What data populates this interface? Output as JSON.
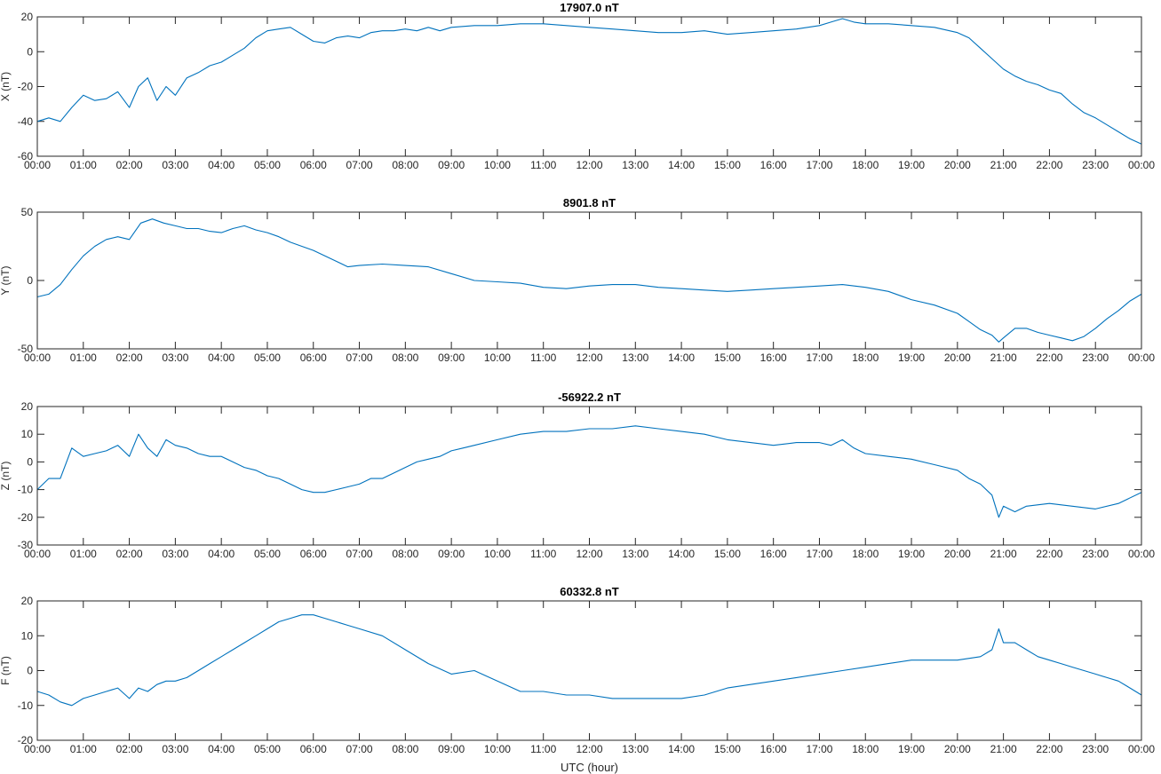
{
  "figure": {
    "xlabel": "UTC (hour)",
    "x_tick_labels": [
      "00:00",
      "01:00",
      "02:00",
      "03:00",
      "04:00",
      "05:00",
      "06:00",
      "07:00",
      "08:00",
      "09:00",
      "10:00",
      "11:00",
      "12:00",
      "13:00",
      "14:00",
      "15:00",
      "16:00",
      "17:00",
      "18:00",
      "19:00",
      "20:00",
      "21:00",
      "22:00",
      "23:00",
      "00:00"
    ],
    "line_color": "#0072bd"
  },
  "chart_data": [
    {
      "type": "line",
      "title": "17907.0 nT",
      "xlabel": "",
      "ylabel": "X (nT)",
      "xlim": [
        0,
        24
      ],
      "ylim": [
        -60,
        20
      ],
      "y_ticks": [
        -60,
        -40,
        -20,
        0,
        20
      ],
      "grid": false,
      "series": [
        {
          "x": [
            0,
            0.25,
            0.5,
            0.75,
            1,
            1.25,
            1.5,
            1.75,
            2,
            2.2,
            2.4,
            2.6,
            2.8,
            3,
            3.25,
            3.5,
            3.75,
            4,
            4.25,
            4.5,
            4.75,
            5,
            5.25,
            5.5,
            5.75,
            6,
            6.25,
            6.5,
            6.75,
            7,
            7.25,
            7.5,
            7.75,
            8,
            8.25,
            8.5,
            8.75,
            9,
            9.5,
            10,
            10.5,
            11,
            11.5,
            12,
            12.5,
            13,
            13.5,
            14,
            14.5,
            15,
            15.5,
            16,
            16.5,
            17,
            17.25,
            17.5,
            17.75,
            18,
            18.5,
            19,
            19.5,
            20,
            20.25,
            20.5,
            20.75,
            21,
            21.25,
            21.5,
            21.75,
            22,
            22.25,
            22.5,
            22.75,
            23,
            23.25,
            23.5,
            23.75,
            24
          ],
          "y": [
            -40,
            -38,
            -40,
            -32,
            -25,
            -28,
            -27,
            -23,
            -32,
            -20,
            -15,
            -28,
            -20,
            -25,
            -15,
            -12,
            -8,
            -6,
            -2,
            2,
            8,
            12,
            13,
            14,
            10,
            6,
            5,
            8,
            9,
            8,
            11,
            12,
            12,
            13,
            12,
            14,
            12,
            14,
            15,
            15,
            16,
            16,
            15,
            14,
            13,
            12,
            11,
            11,
            12,
            10,
            11,
            12,
            13,
            15,
            17,
            19,
            17,
            16,
            16,
            15,
            14,
            11,
            8,
            2,
            -4,
            -10,
            -14,
            -17,
            -19,
            -22,
            -24,
            -30,
            -35,
            -38,
            -42,
            -46,
            -50,
            -53
          ]
        }
      ]
    },
    {
      "type": "line",
      "title": "8901.8 nT",
      "xlabel": "",
      "ylabel": "Y (nT)",
      "xlim": [
        0,
        24
      ],
      "ylim": [
        -50,
        50
      ],
      "y_ticks": [
        -50,
        0,
        50
      ],
      "grid": false,
      "series": [
        {
          "x": [
            0,
            0.25,
            0.5,
            0.75,
            1,
            1.25,
            1.5,
            1.75,
            2,
            2.25,
            2.5,
            2.75,
            3,
            3.25,
            3.5,
            3.75,
            4,
            4.25,
            4.5,
            4.75,
            5,
            5.25,
            5.5,
            5.75,
            6,
            6.25,
            6.5,
            6.75,
            7,
            7.5,
            8,
            8.5,
            9,
            9.5,
            10,
            10.5,
            11,
            11.5,
            12,
            12.5,
            13,
            13.5,
            14,
            14.5,
            15,
            15.5,
            16,
            16.5,
            17,
            17.5,
            18,
            18.5,
            19,
            19.5,
            20,
            20.25,
            20.5,
            20.75,
            20.9,
            21,
            21.25,
            21.5,
            21.75,
            22,
            22.25,
            22.5,
            22.75,
            23,
            23.25,
            23.5,
            23.75,
            24
          ],
          "y": [
            -12,
            -10,
            -3,
            8,
            18,
            25,
            30,
            32,
            30,
            42,
            45,
            42,
            40,
            38,
            38,
            36,
            35,
            38,
            40,
            37,
            35,
            32,
            28,
            25,
            22,
            18,
            14,
            10,
            11,
            12,
            11,
            10,
            5,
            0,
            -1,
            -2,
            -5,
            -6,
            -4,
            -3,
            -3,
            -5,
            -6,
            -7,
            -8,
            -7,
            -6,
            -5,
            -4,
            -3,
            -5,
            -8,
            -14,
            -18,
            -24,
            -30,
            -36,
            -40,
            -45,
            -42,
            -35,
            -35,
            -38,
            -40,
            -42,
            -44,
            -41,
            -35,
            -28,
            -22,
            -15,
            -10
          ]
        }
      ]
    },
    {
      "type": "line",
      "title": "-56922.2 nT",
      "xlabel": "",
      "ylabel": "Z (nT)",
      "xlim": [
        0,
        24
      ],
      "ylim": [
        -30,
        20
      ],
      "y_ticks": [
        -30,
        -20,
        -10,
        0,
        10,
        20
      ],
      "grid": false,
      "series": [
        {
          "x": [
            0,
            0.25,
            0.5,
            0.75,
            1,
            1.25,
            1.5,
            1.75,
            2,
            2.2,
            2.4,
            2.6,
            2.8,
            3,
            3.25,
            3.5,
            3.75,
            4,
            4.25,
            4.5,
            4.75,
            5,
            5.25,
            5.5,
            5.75,
            6,
            6.25,
            6.5,
            6.75,
            7,
            7.25,
            7.5,
            7.75,
            8,
            8.25,
            8.5,
            8.75,
            9,
            9.25,
            9.5,
            10,
            10.5,
            11,
            11.5,
            12,
            12.5,
            13,
            13.5,
            14,
            14.5,
            15,
            15.5,
            16,
            16.5,
            17,
            17.25,
            17.5,
            17.75,
            18,
            18.5,
            19,
            19.5,
            20,
            20.25,
            20.5,
            20.75,
            20.9,
            21,
            21.25,
            21.5,
            22,
            22.5,
            23,
            23.5,
            24
          ],
          "y": [
            -10,
            -6,
            -6,
            5,
            2,
            3,
            4,
            6,
            2,
            10,
            5,
            2,
            8,
            6,
            5,
            3,
            2,
            2,
            0,
            -2,
            -3,
            -5,
            -6,
            -8,
            -10,
            -11,
            -11,
            -10,
            -9,
            -8,
            -6,
            -6,
            -4,
            -2,
            0,
            1,
            2,
            4,
            5,
            6,
            8,
            10,
            11,
            11,
            12,
            12,
            13,
            12,
            11,
            10,
            8,
            7,
            6,
            7,
            7,
            6,
            8,
            5,
            3,
            2,
            1,
            -1,
            -3,
            -6,
            -8,
            -12,
            -20,
            -16,
            -18,
            -16,
            -15,
            -16,
            -17,
            -15,
            -11
          ]
        }
      ]
    },
    {
      "type": "line",
      "title": "60332.8 nT",
      "xlabel": "UTC (hour)",
      "ylabel": "F (nT)",
      "xlim": [
        0,
        24
      ],
      "ylim": [
        -20,
        20
      ],
      "y_ticks": [
        -20,
        -10,
        0,
        10,
        20
      ],
      "grid": false,
      "series": [
        {
          "x": [
            0,
            0.25,
            0.5,
            0.75,
            1,
            1.25,
            1.5,
            1.75,
            2,
            2.2,
            2.4,
            2.6,
            2.8,
            3,
            3.25,
            3.5,
            3.75,
            4,
            4.25,
            4.5,
            4.75,
            5,
            5.25,
            5.5,
            5.75,
            6,
            6.25,
            6.5,
            6.75,
            7,
            7.5,
            8,
            8.5,
            9,
            9.5,
            10,
            10.5,
            11,
            11.5,
            12,
            12.5,
            13,
            13.5,
            14,
            14.5,
            15,
            15.5,
            16,
            16.5,
            17,
            17.5,
            18,
            18.5,
            19,
            19.5,
            20,
            20.5,
            20.75,
            20.9,
            21,
            21.25,
            21.5,
            21.75,
            22,
            22.25,
            22.5,
            22.75,
            23,
            23.25,
            23.5,
            23.75,
            24
          ],
          "y": [
            -6,
            -7,
            -9,
            -10,
            -8,
            -7,
            -6,
            -5,
            -8,
            -5,
            -6,
            -4,
            -3,
            -3,
            -2,
            0,
            2,
            4,
            6,
            8,
            10,
            12,
            14,
            15,
            16,
            16,
            15,
            14,
            13,
            12,
            10,
            6,
            2,
            -1,
            0,
            -3,
            -6,
            -6,
            -7,
            -7,
            -8,
            -8,
            -8,
            -8,
            -7,
            -5,
            -4,
            -3,
            -2,
            -1,
            0,
            1,
            2,
            3,
            3,
            3,
            4,
            6,
            12,
            8,
            8,
            6,
            4,
            3,
            2,
            1,
            0,
            -1,
            -2,
            -3,
            -5,
            -7
          ]
        }
      ]
    }
  ]
}
